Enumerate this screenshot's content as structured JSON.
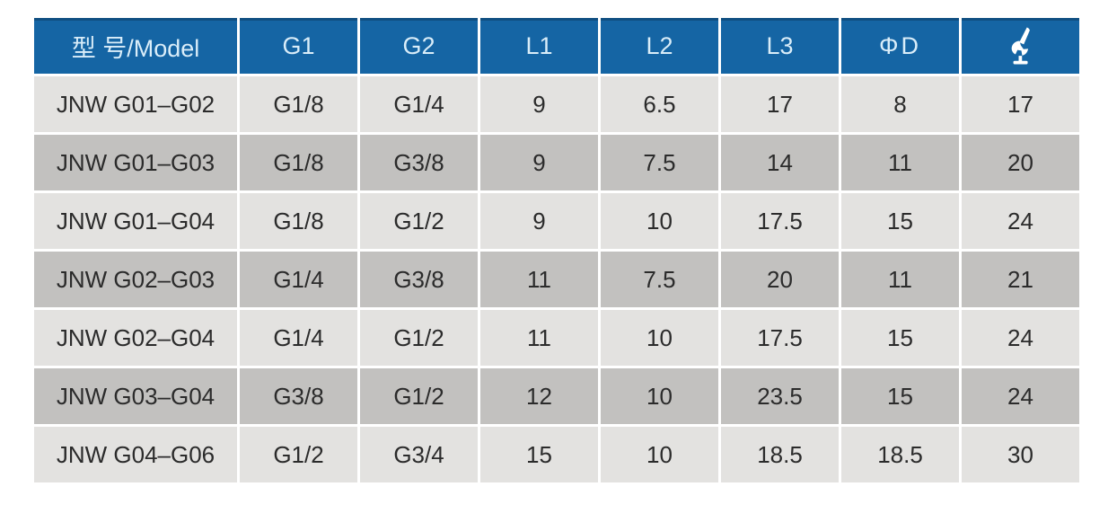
{
  "colors": {
    "header_bg": "#1565a4",
    "header_edge": "#0d4e84",
    "header_text": "#d9edf9",
    "row_light": "#e3e2e0",
    "row_dark": "#c2c1bf",
    "cell_text": "#2b2b2b",
    "separator": "#ffffff",
    "page_bg": "#ffffff"
  },
  "table": {
    "header": {
      "model": "型 号/Model",
      "g1": "G1",
      "g2": "G2",
      "l1": "L1",
      "l2": "L2",
      "l3": "L3",
      "phi_d": "ΦD",
      "wrench": "wrench-icon"
    },
    "column_keys": [
      "model",
      "g1",
      "g2",
      "l1",
      "l2",
      "l3",
      "phi_d",
      "wrench_size"
    ],
    "rows": [
      [
        "JNW G01–G02",
        "G1/8",
        "G1/4",
        "9",
        "6.5",
        "17",
        "8",
        "17"
      ],
      [
        "JNW G01–G03",
        "G1/8",
        "G3/8",
        "9",
        "7.5",
        "14",
        "11",
        "20"
      ],
      [
        "JNW G01–G04",
        "G1/8",
        "G1/2",
        "9",
        "10",
        "17.5",
        "15",
        "24"
      ],
      [
        "JNW G02–G03",
        "G1/4",
        "G3/8",
        "11",
        "7.5",
        "20",
        "11",
        "21"
      ],
      [
        "JNW G02–G04",
        "G1/4",
        "G1/2",
        "11",
        "10",
        "17.5",
        "15",
        "24"
      ],
      [
        "JNW G03–G04",
        "G3/8",
        "G1/2",
        "12",
        "10",
        "23.5",
        "15",
        "24"
      ],
      [
        "JNW G04–G06",
        "G1/2",
        "G3/4",
        "15",
        "10",
        "18.5",
        "18.5",
        "30"
      ]
    ]
  }
}
